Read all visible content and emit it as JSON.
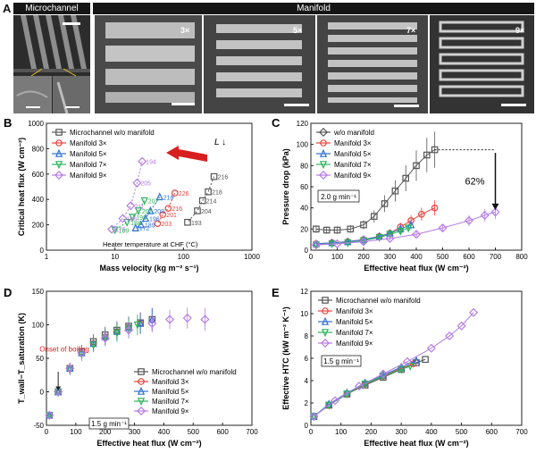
{
  "panel_a": {
    "letter": "A",
    "microchannel_label": "Microchannel",
    "manifold_label": "Manifold",
    "multipliers": [
      "3×",
      "5×",
      "7×",
      "9×"
    ]
  },
  "series_names": {
    "wo": "Microchannel w/o manifold",
    "m3": "Manifold 3×",
    "m5": "Manifold 5×",
    "m7": "Manifold 7×",
    "m9": "Manifold 9×",
    "wo_short": "w/o manifold"
  },
  "colors": {
    "wo": "#555555",
    "m3": "#e8413c",
    "m5": "#2f6fd6",
    "m7": "#2bb35a",
    "m9": "#b57be6",
    "arrow": "#d81f1f"
  },
  "chart_data": [
    {
      "panel": "B",
      "type": "scatter",
      "xlabel": "Mass velocity (kg m⁻² s⁻¹)",
      "ylabel": "Critical heat flux (W cm⁻²)",
      "xscale": "log",
      "xlim": [
        1,
        1000
      ],
      "ylim": [
        0,
        1000
      ],
      "xticks": [
        "1",
        "10",
        "100",
        "1000"
      ],
      "yticks": [
        "0",
        "200",
        "400",
        "600",
        "800",
        "1000"
      ],
      "annotation_L": "L ↓",
      "heater_note": "Heater temperature at CHF (°C)",
      "series": [
        {
          "name": "wo",
          "x": [
            280,
            230,
            190,
            160,
            115
          ],
          "y": [
            580,
            460,
            390,
            310,
            220
          ],
          "temps": [
            "216",
            "218",
            "214",
            "204",
            "193"
          ]
        },
        {
          "name": "m3",
          "x": [
            75,
            60,
            50,
            42
          ],
          "y": [
            450,
            330,
            280,
            210
          ],
          "temps": [
            "226",
            "216",
            "201",
            "203"
          ]
        },
        {
          "name": "m5",
          "x": [
            45,
            33,
            28,
            24,
            20
          ],
          "y": [
            420,
            310,
            250,
            200,
            175
          ],
          "temps": [
            "218",
            "209",
            "196",
            "189",
            "172"
          ]
        },
        {
          "name": "m7",
          "x": [
            27,
            22,
            18,
            15,
            10
          ],
          "y": [
            390,
            310,
            260,
            220,
            160
          ],
          "temps": [
            "207",
            "201",
            "198",
            "188",
            "169"
          ]
        },
        {
          "name": "m9",
          "x": [
            25,
            21,
            17,
            13,
            9
          ],
          "y": [
            700,
            530,
            350,
            250,
            165
          ],
          "temps": [
            "194",
            "205",
            "211",
            "188",
            "175"
          ]
        }
      ]
    },
    {
      "panel": "C",
      "type": "line",
      "xlabel": "Effective heat flux (W cm⁻²)",
      "ylabel": "Pressure drop (kPa)",
      "xlim": [
        0,
        800
      ],
      "ylim": [
        0,
        120
      ],
      "xticks": [
        "0",
        "100",
        "200",
        "300",
        "400",
        "500",
        "600",
        "700",
        "800"
      ],
      "yticks": [
        "0",
        "20",
        "40",
        "60",
        "80",
        "100",
        "120"
      ],
      "flow_label": "2.0 g min⁻¹",
      "reduction_label": "62%",
      "series": [
        {
          "name": "wo",
          "x": [
            20,
            60,
            100,
            150,
            200,
            240,
            280,
            320,
            360,
            400,
            440,
            470
          ],
          "y": [
            20,
            19,
            19,
            20,
            24,
            32,
            44,
            56,
            68,
            80,
            90,
            95
          ]
        },
        {
          "name": "m3",
          "x": [
            20,
            80,
            140,
            200,
            260,
            300,
            340,
            380,
            420,
            470
          ],
          "y": [
            6,
            7,
            8,
            10,
            13,
            16,
            22,
            28,
            34,
            40
          ]
        },
        {
          "name": "m5",
          "x": [
            20,
            80,
            140,
            200,
            260,
            300,
            340,
            380
          ],
          "y": [
            6,
            7,
            8,
            10,
            13,
            16,
            20,
            24
          ]
        },
        {
          "name": "m7",
          "x": [
            20,
            80,
            140,
            200,
            260,
            300,
            340,
            370
          ],
          "y": [
            5,
            6,
            7,
            9,
            12,
            15,
            18,
            21
          ]
        },
        {
          "name": "m9",
          "x": [
            20,
            100,
            200,
            300,
            400,
            500,
            600,
            660,
            700
          ],
          "y": [
            5,
            6,
            8,
            11,
            15,
            21,
            28,
            33,
            36
          ]
        }
      ]
    },
    {
      "panel": "D",
      "type": "scatter",
      "xlabel": "Effective heat flux (W cm⁻²)",
      "ylabel": "T_wall−T_saturation (K)",
      "xlim": [
        0,
        700
      ],
      "ylim": [
        -50,
        150
      ],
      "xticks": [
        "0",
        "100",
        "200",
        "300",
        "400",
        "500",
        "600",
        "700"
      ],
      "yticks": [
        "-50",
        "0",
        "50",
        "100",
        "150"
      ],
      "onset_label": "Onset of boiling",
      "flow_label": "1.5 g min⁻¹",
      "series": [
        {
          "name": "wo",
          "x": [
            10,
            40,
            80,
            120,
            160,
            200,
            240,
            280,
            320,
            360
          ],
          "y": [
            -35,
            0,
            35,
            60,
            75,
            85,
            92,
            98,
            103,
            108
          ]
        },
        {
          "name": "m3",
          "x": [
            10,
            40,
            80,
            120,
            160,
            200,
            240,
            280,
            320
          ],
          "y": [
            -35,
            0,
            35,
            58,
            72,
            82,
            90,
            96,
            102
          ]
        },
        {
          "name": "m5",
          "x": [
            10,
            40,
            80,
            120,
            160,
            200,
            240,
            280,
            320,
            360
          ],
          "y": [
            -35,
            0,
            35,
            58,
            72,
            82,
            90,
            96,
            102,
            108
          ]
        },
        {
          "name": "m7",
          "x": [
            10,
            40,
            80,
            120,
            160,
            200,
            240,
            280,
            310
          ],
          "y": [
            -35,
            0,
            33,
            56,
            70,
            80,
            88,
            94,
            100
          ]
        },
        {
          "name": "m9",
          "x": [
            10,
            40,
            80,
            120,
            200,
            280,
            360,
            420,
            480,
            540
          ],
          "y": [
            -35,
            0,
            35,
            58,
            80,
            92,
            102,
            108,
            110,
            108
          ]
        }
      ]
    },
    {
      "panel": "E",
      "type": "line",
      "xlabel": "Effective heat flux (W cm⁻²)",
      "ylabel": "Effective HTC (kW m⁻² K⁻¹)",
      "xlim": [
        0,
        700
      ],
      "ylim": [
        0,
        12
      ],
      "xticks": [
        "0",
        "100",
        "200",
        "300",
        "400",
        "500",
        "600",
        "700"
      ],
      "yticks": [
        "0",
        "2",
        "4",
        "6",
        "8",
        "10",
        "12"
      ],
      "flow_label": "1.5 g min⁻¹",
      "series": [
        {
          "name": "wo",
          "x": [
            10,
            60,
            120,
            180,
            240,
            300,
            350,
            380
          ],
          "y": [
            0.8,
            1.8,
            2.8,
            3.6,
            4.3,
            5.0,
            5.6,
            5.9
          ]
        },
        {
          "name": "m3",
          "x": [
            10,
            60,
            120,
            180,
            240,
            300,
            340
          ],
          "y": [
            0.8,
            1.8,
            2.8,
            3.7,
            4.4,
            5.1,
            5.5
          ]
        },
        {
          "name": "m5",
          "x": [
            10,
            60,
            120,
            180,
            240,
            300,
            350
          ],
          "y": [
            0.8,
            1.9,
            2.9,
            3.8,
            4.5,
            5.2,
            5.8
          ]
        },
        {
          "name": "m7",
          "x": [
            10,
            60,
            120,
            180,
            240,
            300,
            330
          ],
          "y": [
            0.8,
            1.8,
            2.8,
            3.7,
            4.4,
            5.0,
            5.3
          ]
        },
        {
          "name": "m9",
          "x": [
            10,
            80,
            160,
            240,
            320,
            400,
            460,
            500,
            540
          ],
          "y": [
            0.8,
            2.2,
            3.5,
            4.6,
            5.7,
            6.9,
            8.0,
            8.9,
            10.1
          ]
        }
      ]
    }
  ]
}
